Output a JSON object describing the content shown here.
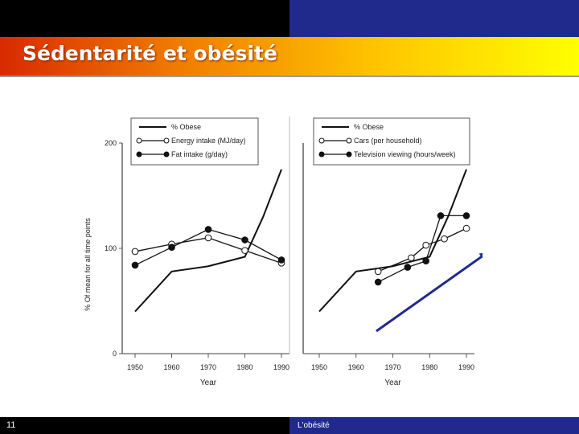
{
  "slide": {
    "title": "Sédentarité et obésité",
    "page_number": "11",
    "footer": "L'obésité"
  },
  "colors": {
    "title_band_start": "#d82a00",
    "title_band_end": "#ffff00",
    "top_bar_right": "#1f2a8c",
    "footer_bar_right": "#1f2a8c",
    "arrow": "#1f2a8c"
  },
  "chart_data": [
    {
      "type": "line",
      "xlabel": "Year",
      "ylabel": "% Of mean for all time points",
      "ylim": [
        0,
        200
      ],
      "yticks": [
        "0",
        "100",
        "200"
      ],
      "xticks": [
        "1950",
        "1960",
        "1970",
        "1980",
        "1990"
      ],
      "legend_position": "top",
      "series": [
        {
          "name": "% Obese",
          "marker": "none",
          "x": [
            1950,
            1960,
            1970,
            1980,
            1985,
            1990
          ],
          "y": [
            40,
            78,
            83,
            92,
            130,
            175
          ]
        },
        {
          "name": "Energy intake (MJ/day)",
          "marker": "open-circle",
          "x": [
            1950,
            1960,
            1970,
            1980,
            1990
          ],
          "y": [
            97,
            104,
            110,
            98,
            86
          ]
        },
        {
          "name": "Fat intake (g/day)",
          "marker": "filled-circle",
          "x": [
            1950,
            1960,
            1970,
            1980,
            1990
          ],
          "y": [
            84,
            101,
            118,
            108,
            89
          ]
        }
      ]
    },
    {
      "type": "line",
      "xlabel": "Year",
      "ylabel": "",
      "ylim": [
        0,
        200
      ],
      "xticks": [
        "1950",
        "1960",
        "1970",
        "1980",
        "1990"
      ],
      "legend_position": "top",
      "series": [
        {
          "name": "% Obese",
          "marker": "none",
          "x": [
            1950,
            1960,
            1970,
            1980,
            1985,
            1990
          ],
          "y": [
            40,
            78,
            83,
            92,
            130,
            175
          ]
        },
        {
          "name": "Cars (per household)",
          "marker": "open-circle",
          "x": [
            1966,
            1975,
            1979,
            1984,
            1990
          ],
          "y": [
            78,
            91,
            103,
            109,
            119
          ]
        },
        {
          "name": "Television viewing (hours/week)",
          "marker": "filled-circle",
          "x": [
            1966,
            1974,
            1979,
            1983,
            1990
          ],
          "y": [
            68,
            82,
            88,
            131,
            131
          ]
        }
      ]
    }
  ]
}
